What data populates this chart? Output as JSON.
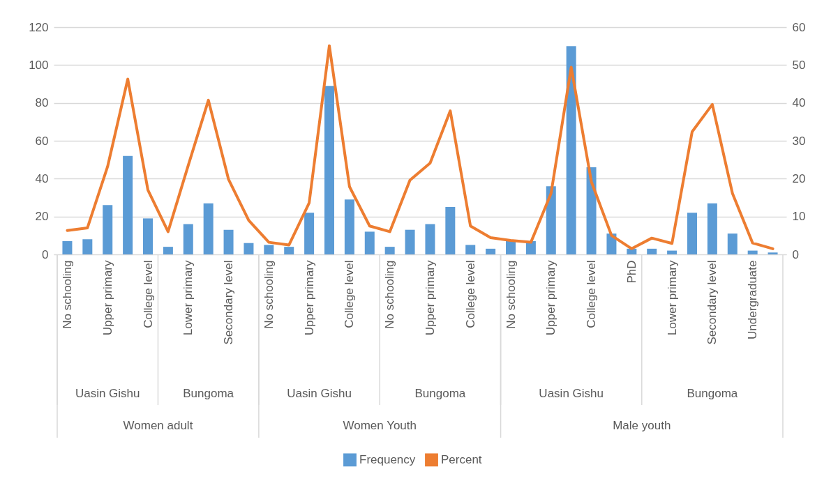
{
  "chart_data": {
    "type": "bar",
    "categories": [
      "No schooling",
      null,
      "Upper primary",
      null,
      "College level",
      null,
      "Lower primary",
      null,
      "Secondary level",
      null,
      "No schooling",
      null,
      "Upper primary",
      null,
      "College level",
      null,
      "No schooling",
      null,
      "Upper primary",
      null,
      "College level",
      null,
      "No schooling",
      null,
      "Upper primary",
      null,
      "College level",
      null,
      "PhD",
      null,
      "Lower primary",
      null,
      "Secondary level",
      null,
      "Undergraduate",
      null
    ],
    "series": [
      {
        "name": "Frequency",
        "color": "#5b9bd5",
        "values": [
          7,
          8,
          26,
          52,
          19,
          4,
          16,
          27,
          13,
          6,
          5,
          4,
          22,
          89,
          29,
          12,
          4,
          13,
          16,
          25,
          5,
          3,
          7,
          7,
          36,
          110,
          46,
          11,
          3,
          3,
          2,
          22,
          27,
          11,
          2,
          1
        ]
      },
      {
        "name": "Percent",
        "type": "line",
        "axis": "y2",
        "color": "#ed7d31",
        "values": [
          6.3,
          7.0,
          23.2,
          46.3,
          17.0,
          6.0,
          23.5,
          40.7,
          19.8,
          9.0,
          3.2,
          2.5,
          13.6,
          55.1,
          17.9,
          7.5,
          6.0,
          19.6,
          24.1,
          37.9,
          7.5,
          4.4,
          3.7,
          3.2,
          16.1,
          49.4,
          19.2,
          5.0,
          1.5,
          4.3,
          2.9,
          32.4,
          39.6,
          16.1,
          3.0,
          1.5
        ]
      }
    ],
    "ylim": [
      0,
      120
    ],
    "yticks": [
      0,
      20,
      40,
      60,
      80,
      100,
      120
    ],
    "y2lim": [
      0,
      60
    ],
    "y2ticks": [
      0,
      10,
      20,
      30,
      40,
      50,
      60
    ],
    "grid": "y",
    "legend": "bottom",
    "annotations": [
      "Uasin Gishu",
      "Bungoma",
      "Uasin Gishu",
      "Bungoma",
      "Uasin Gishu",
      "Bungoma",
      "Women adult",
      "Women Youth",
      "Male youth"
    ]
  }
}
